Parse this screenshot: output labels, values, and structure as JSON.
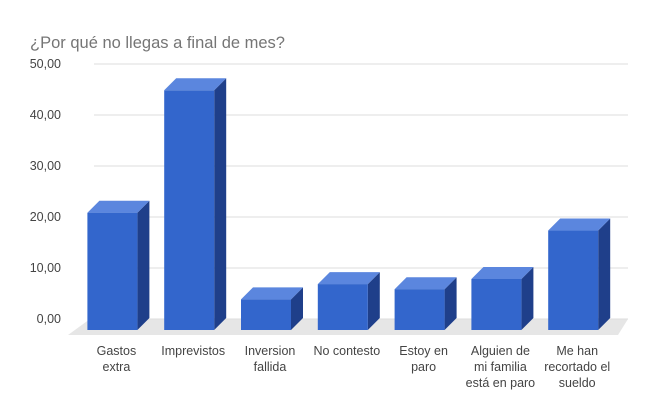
{
  "chart_data": {
    "type": "bar",
    "title": "¿Por qué no llegas a final de mes?",
    "categories": [
      [
        "Gastos",
        "extra"
      ],
      [
        "Imprevistos"
      ],
      [
        "Inversion",
        "fallida"
      ],
      [
        "No contesto"
      ],
      [
        "Estoy en",
        "paro"
      ],
      [
        "Alguien de",
        "mi familia",
        "está en paro"
      ],
      [
        "Me han",
        "recortado el",
        "sueldo"
      ]
    ],
    "values": [
      23,
      47,
      6,
      9,
      8,
      10,
      19.5
    ],
    "ylim": [
      0,
      50
    ],
    "yticks": [
      "0,00",
      "10,00",
      "20,00",
      "30,00",
      "40,00",
      "50,00"
    ],
    "ytick_values": [
      0,
      10,
      20,
      30,
      40,
      50
    ],
    "grid": true,
    "style": "3d",
    "colors": {
      "front": "#3366cc",
      "top": "#5b86de",
      "side": "#1f3f8a",
      "floor": "#e6e6e6",
      "grid": "#dddddd"
    }
  }
}
